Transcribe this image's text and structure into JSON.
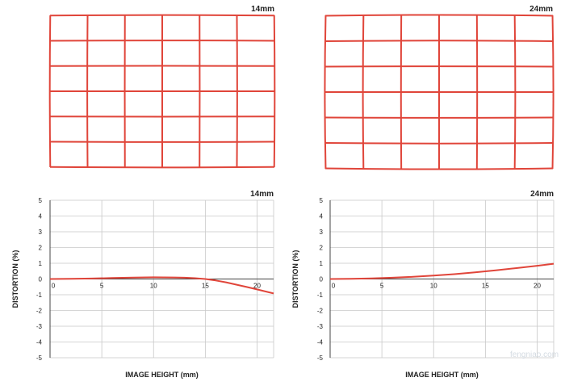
{
  "grids": [
    {
      "label": "14mm",
      "rows": 6,
      "cols": 6,
      "distortion_shape": "slight-wave"
    },
    {
      "label": "24mm",
      "rows": 6,
      "cols": 6,
      "distortion_shape": "slight-pincushion"
    }
  ],
  "colors": {
    "grid_line": "#e0453a",
    "curve": "#e0453a",
    "axis": "#444444",
    "chart_grid": "#c8c8c8",
    "text": "#222222"
  },
  "chart_data": [
    {
      "type": "line",
      "title": "14mm",
      "xlabel": "IMAGE HEIGHT (mm)",
      "ylabel": "DISTORTION (%)",
      "xlim": [
        0,
        21.6
      ],
      "ylim": [
        -5,
        5
      ],
      "x_ticks": [
        0,
        5,
        10,
        15,
        20
      ],
      "y_ticks": [
        5,
        4,
        3,
        2,
        1,
        0,
        -1,
        -2,
        -3,
        -4,
        -5
      ],
      "grid": true,
      "series": [
        {
          "x": [
            0,
            2,
            4,
            6,
            8,
            10,
            12,
            13,
            14,
            15,
            16,
            17,
            18,
            19,
            20,
            21,
            21.6
          ],
          "values": [
            0,
            0.01,
            0.03,
            0.06,
            0.09,
            0.11,
            0.1,
            0.08,
            0.05,
            0.0,
            -0.09,
            -0.21,
            -0.36,
            -0.51,
            -0.66,
            -0.82,
            -0.92
          ]
        }
      ]
    },
    {
      "type": "line",
      "title": "24mm",
      "xlabel": "IMAGE HEIGHT (mm)",
      "ylabel": "DISTORTION (%)",
      "xlim": [
        0,
        21.6
      ],
      "ylim": [
        -5,
        5
      ],
      "x_ticks": [
        0,
        5,
        10,
        15,
        20
      ],
      "y_ticks": [
        5,
        4,
        3,
        2,
        1,
        0,
        -1,
        -2,
        -3,
        -4,
        -5
      ],
      "grid": true,
      "series": [
        {
          "x": [
            0,
            2,
            4,
            6,
            8,
            10,
            12,
            14,
            16,
            18,
            20,
            21.6
          ],
          "values": [
            0,
            0.01,
            0.04,
            0.08,
            0.14,
            0.22,
            0.31,
            0.42,
            0.55,
            0.69,
            0.84,
            0.97
          ]
        }
      ]
    }
  ],
  "watermark": "fengniao.com"
}
